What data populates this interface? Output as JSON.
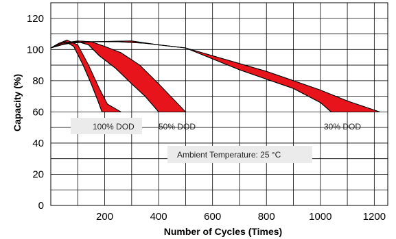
{
  "chart_data": {
    "type": "area",
    "title": "",
    "xlabel": "Number of Cycles (Times)",
    "ylabel": "Capacity (%)",
    "xlim": [
      0,
      1250
    ],
    "ylim": [
      0,
      130
    ],
    "x_ticks": [
      200,
      400,
      600,
      800,
      1000,
      1200
    ],
    "y_ticks": [
      0,
      20,
      40,
      60,
      80,
      100,
      120
    ],
    "grid": true,
    "band_color": "#e8141b",
    "annotation_box_color": "#ebebeb",
    "series": [
      {
        "name": "100% DOD",
        "upper": [
          [
            0,
            101
          ],
          [
            30,
            104
          ],
          [
            60,
            106
          ],
          [
            100,
            103
          ],
          [
            140,
            90
          ],
          [
            180,
            75
          ],
          [
            210,
            65
          ],
          [
            260,
            60
          ]
        ],
        "lower": [
          [
            0,
            101
          ],
          [
            30,
            103
          ],
          [
            55,
            105
          ],
          [
            85,
            102
          ],
          [
            120,
            90
          ],
          [
            150,
            78
          ],
          [
            175,
            67
          ],
          [
            190,
            60
          ]
        ]
      },
      {
        "name": "50% DOD",
        "upper": [
          [
            0,
            101
          ],
          [
            40,
            104
          ],
          [
            100,
            105.5
          ],
          [
            150,
            105
          ],
          [
            200,
            102
          ],
          [
            260,
            98
          ],
          [
            330,
            90
          ],
          [
            400,
            78
          ],
          [
            450,
            69
          ],
          [
            500,
            60
          ]
        ],
        "lower": [
          [
            0,
            101
          ],
          [
            40,
            103
          ],
          [
            100,
            105
          ],
          [
            140,
            103
          ],
          [
            180,
            96
          ],
          [
            240,
            88
          ],
          [
            300,
            78
          ],
          [
            350,
            70
          ],
          [
            400,
            60
          ]
        ]
      },
      {
        "name": "30% DOD",
        "upper": [
          [
            0,
            101
          ],
          [
            60,
            104
          ],
          [
            150,
            105
          ],
          [
            300,
            105.5
          ],
          [
            400,
            103
          ],
          [
            500,
            101
          ],
          [
            600,
            96
          ],
          [
            700,
            91
          ],
          [
            800,
            86
          ],
          [
            900,
            80
          ],
          [
            1000,
            74
          ],
          [
            1100,
            67
          ],
          [
            1220,
            60
          ]
        ],
        "lower": [
          [
            0,
            101
          ],
          [
            60,
            104
          ],
          [
            150,
            105
          ],
          [
            250,
            105
          ],
          [
            350,
            104
          ],
          [
            450,
            102
          ],
          [
            500,
            101
          ],
          [
            600,
            94
          ],
          [
            700,
            87
          ],
          [
            800,
            81
          ],
          [
            900,
            75
          ],
          [
            1000,
            66
          ],
          [
            1040,
            60
          ]
        ]
      }
    ],
    "labels": {
      "dod100": "100% DOD",
      "dod50": "50% DOD",
      "dod30": "30% DOD",
      "ambient": "Ambient Temperature: 25 °C"
    }
  }
}
